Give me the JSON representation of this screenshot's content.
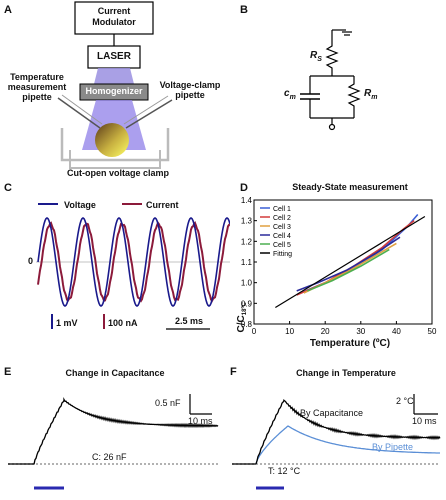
{
  "panelA": {
    "letter": "A",
    "modulator_line1": "Current",
    "modulator_line2": "Modulator",
    "laser": "LASER",
    "homogenizer": "Homogenizer",
    "temp_pipette_line1": "Temperature",
    "temp_pipette_line2": "measurement",
    "temp_pipette_line3": "pipette",
    "vclamp_line1": "Voltage-clamp",
    "vclamp_line2": "pipette",
    "caption": "Cut-open voltage clamp"
  },
  "panelB": {
    "letter": "B",
    "rs": "R",
    "rs_sub": "S",
    "cm": "c",
    "cm_sub": "m",
    "rm": "R",
    "rm_sub": "m"
  },
  "panelC": {
    "letter": "C",
    "legend_voltage": "Voltage",
    "legend_current": "Current",
    "zero_label": "0",
    "scale_mv": "1 mV",
    "scale_na": "100 nA",
    "scale_ms": "2.5 ms",
    "colors": {
      "voltage": "#1a1a8c",
      "current": "#8c1a3a"
    }
  },
  "panelD": {
    "letter": "D",
    "chart_data": {
      "type": "line",
      "title": "Steady-State measurement",
      "xlabel": "Temperature (ºC)",
      "ylabel_main": "C/C",
      "ylabel_sub": "18ºC",
      "xlim": [
        0,
        50
      ],
      "ylim": [
        0.8,
        1.4
      ],
      "xticks": [
        "0",
        "10",
        "20",
        "30",
        "40",
        "50"
      ],
      "yticks": [
        "0.8",
        "0.9",
        "1.0",
        "1.1",
        "1.2",
        "1.3",
        "1.4"
      ],
      "legend_placement": "top-left",
      "series": [
        {
          "name": "Cell 1",
          "color": "#3b5fd6",
          "x": [
            13,
            20,
            28,
            36,
            43,
            46
          ],
          "y": [
            0.95,
            1.0,
            1.07,
            1.16,
            1.27,
            1.33
          ]
        },
        {
          "name": "Cell 2",
          "color": "#d23b3b",
          "x": [
            12,
            20,
            28,
            36,
            42,
            45
          ],
          "y": [
            0.94,
            1.0,
            1.08,
            1.17,
            1.26,
            1.3
          ]
        },
        {
          "name": "Cell 3",
          "color": "#e0a040",
          "x": [
            14,
            20,
            27,
            34,
            40
          ],
          "y": [
            0.95,
            1.0,
            1.06,
            1.13,
            1.19
          ]
        },
        {
          "name": "Cell 4",
          "color": "#2a2a9a",
          "x": [
            12,
            18,
            26,
            34,
            41
          ],
          "y": [
            0.96,
            1.0,
            1.06,
            1.14,
            1.22
          ]
        },
        {
          "name": "Cell 5",
          "color": "#4caf50",
          "x": [
            15,
            22,
            30,
            38
          ],
          "y": [
            0.96,
            1.01,
            1.08,
            1.16
          ]
        },
        {
          "name": "Fitting",
          "color": "#000000",
          "x": [
            6,
            48
          ],
          "y": [
            0.88,
            1.32
          ]
        }
      ]
    }
  },
  "panelE": {
    "letter": "E",
    "title": "Change in Capacitance",
    "scale_y": "0.5 nF",
    "scale_x": "10 ms",
    "baseline_label": "C: 26 nF"
  },
  "panelF": {
    "letter": "F",
    "title": "Change in Temperature",
    "scale_y": "2 °C",
    "scale_x": "10 ms",
    "label_cap": "By Capacitance",
    "label_pipette": "By Pipette",
    "baseline_label": "T: 12 °C",
    "colors": {
      "pipette": "#5b8fd6"
    }
  }
}
